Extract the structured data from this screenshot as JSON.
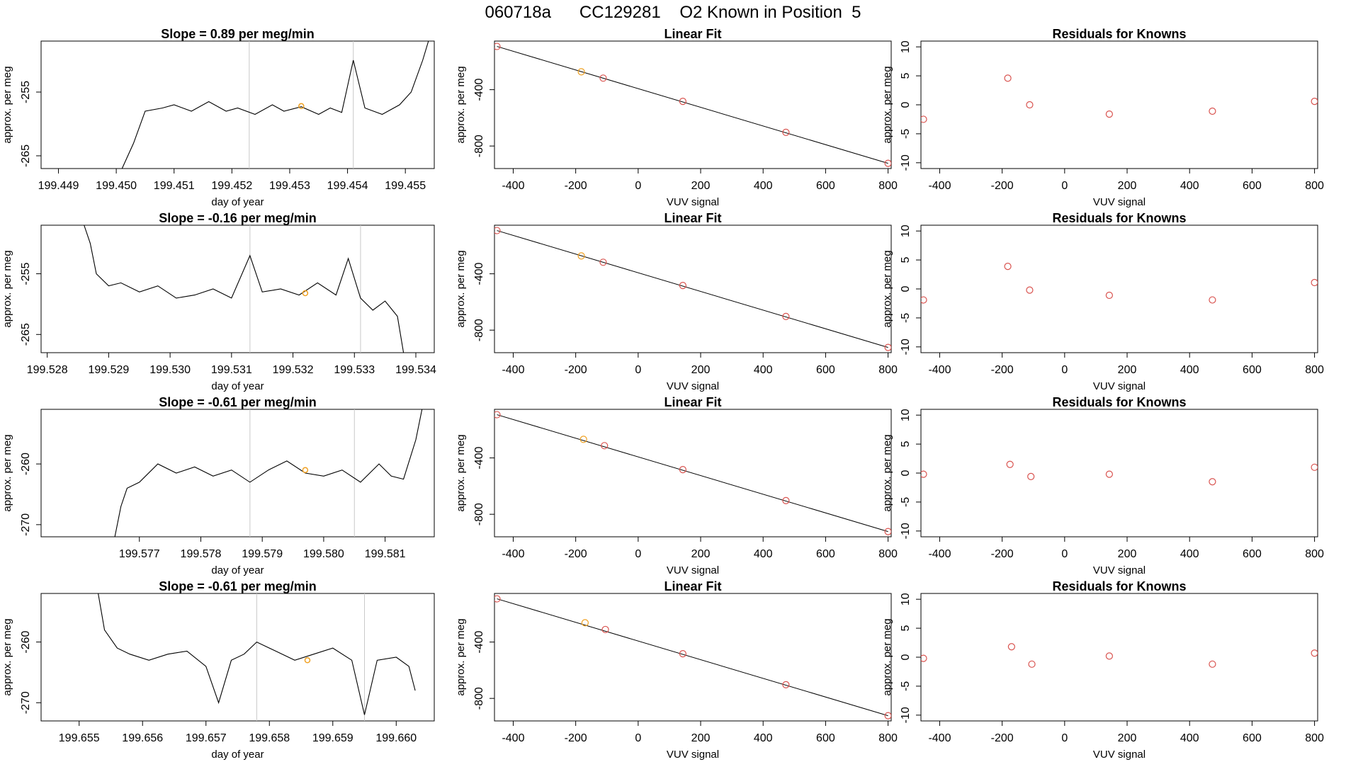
{
  "page": {
    "title": "060718a      CC129281    O2 Known in Position  5"
  },
  "colors": {
    "trace": "#000000",
    "fit_line": "#000000",
    "fit_points": "#d9534f",
    "highlight": "#f0a020",
    "residual_points": "#d9534f",
    "marker_lines": "#c8c8c8"
  },
  "chart_data": [
    {
      "type": "line",
      "title": "Slope =  0.89  per meg/min",
      "xlabel": "day of year",
      "ylabel": "approx. per meg",
      "xlim": [
        199.4487,
        199.4555
      ],
      "ylim": [
        -267,
        -247
      ],
      "xticks": [
        "199.449",
        "199.450",
        "199.451",
        "199.452",
        "199.453",
        "199.454",
        "199.455"
      ],
      "yticks": [
        "-255",
        "-265"
      ],
      "markers": [
        199.4523,
        199.4541
      ],
      "highlight": {
        "x": 199.4532,
        "y": -257.2
      },
      "series": [
        {
          "x": [
            199.4501,
            199.4503,
            199.4505,
            199.4508,
            199.451,
            199.4513,
            199.4516,
            199.4519,
            199.4521,
            199.4524,
            199.4527,
            199.4529,
            199.4532,
            199.4535,
            199.4537,
            199.4539,
            199.4541,
            199.4543,
            199.4546,
            199.4549,
            199.4551,
            199.4553,
            199.4554
          ],
          "y": [
            -267,
            -263,
            -258,
            -257.5,
            -257,
            -258,
            -256.5,
            -258,
            -257.5,
            -258.5,
            -257,
            -258,
            -257.3,
            -258.5,
            -257.5,
            -258.2,
            -250,
            -257.5,
            -258.5,
            -257,
            -255,
            -250,
            -247
          ]
        }
      ]
    },
    {
      "type": "scatter",
      "title": "Linear Fit",
      "xlabel": "VUV signal",
      "ylabel": "approx. per meg",
      "xlim": [
        -460,
        810
      ],
      "ylim": [
        -960,
        -55
      ],
      "xticks": [
        "-400",
        "-200",
        "0",
        "200",
        "400",
        "600",
        "800"
      ],
      "yticks": [
        "-400",
        "-800"
      ],
      "x": [
        -452,
        -182,
        -112,
        143,
        473,
        800
      ],
      "y": [
        -93,
        -273,
        -318,
        -483,
        -703,
        -923
      ],
      "highlight_index": 1,
      "fit": {
        "x": [
          -452,
          800
        ],
        "y": [
          -93,
          -923
        ]
      }
    },
    {
      "type": "scatter",
      "title": "Residuals for Knowns",
      "xlabel": "VUV signal",
      "ylabel": "approx. per meg",
      "xlim": [
        -460,
        810
      ],
      "ylim": [
        -11,
        11
      ],
      "xticks": [
        "-400",
        "-200",
        "0",
        "200",
        "400",
        "600",
        "800"
      ],
      "yticks": [
        "10",
        "5",
        "0",
        "-5",
        "-10"
      ],
      "x": [
        -452,
        -182,
        -112,
        143,
        473,
        800
      ],
      "y": [
        -2.5,
        4.6,
        0,
        -1.6,
        -1.1,
        0.6
      ]
    },
    {
      "type": "line",
      "title": "Slope =  -0.16  per meg/min",
      "xlabel": "day of year",
      "ylabel": "approx. per meg",
      "xlim": [
        199.5279,
        199.5343
      ],
      "ylim": [
        -268,
        -247
      ],
      "xticks": [
        "199.528",
        "199.529",
        "199.530",
        "199.531",
        "199.532",
        "199.533",
        "199.534"
      ],
      "yticks": [
        "-255",
        "-265"
      ],
      "markers": [
        199.5313,
        199.5331
      ],
      "highlight": {
        "x": 199.5322,
        "y": -258.2
      },
      "series": [
        {
          "x": [
            199.5286,
            199.5287,
            199.5288,
            199.529,
            199.5292,
            199.5295,
            199.5298,
            199.5301,
            199.5304,
            199.5307,
            199.531,
            199.5313,
            199.5315,
            199.5318,
            199.5321,
            199.5324,
            199.5327,
            199.5329,
            199.5331,
            199.5333,
            199.5335,
            199.5337,
            199.5338
          ],
          "y": [
            -247,
            -250,
            -255,
            -257,
            -256.5,
            -258,
            -257,
            -259,
            -258.5,
            -257.5,
            -259,
            -252,
            -258,
            -257.5,
            -258.5,
            -256.5,
            -258.5,
            -252.5,
            -259,
            -261,
            -259.5,
            -262,
            -268
          ]
        }
      ]
    },
    {
      "type": "scatter",
      "title": "Linear Fit",
      "xlabel": "VUV signal",
      "ylabel": "approx. per meg",
      "xlim": [
        -460,
        810
      ],
      "ylim": [
        -960,
        -55
      ],
      "xticks": [
        "-400",
        "-200",
        "0",
        "200",
        "400",
        "600",
        "800"
      ],
      "yticks": [
        "-400",
        "-800"
      ],
      "x": [
        -452,
        -182,
        -112,
        143,
        473,
        800
      ],
      "y": [
        -93,
        -273,
        -318,
        -483,
        -703,
        -923
      ],
      "highlight_index": 1,
      "fit": {
        "x": [
          -452,
          800
        ],
        "y": [
          -93,
          -923
        ]
      }
    },
    {
      "type": "scatter",
      "title": "Residuals for Knowns",
      "xlabel": "VUV signal",
      "ylabel": "approx. per meg",
      "xlim": [
        -460,
        810
      ],
      "ylim": [
        -11,
        11
      ],
      "xticks": [
        "-400",
        "-200",
        "0",
        "200",
        "400",
        "600",
        "800"
      ],
      "yticks": [
        "10",
        "5",
        "0",
        "-5",
        "-10"
      ],
      "x": [
        -452,
        -182,
        -112,
        143,
        473,
        800
      ],
      "y": [
        -1.9,
        3.9,
        -0.2,
        -1.1,
        -1.9,
        1.1
      ]
    },
    {
      "type": "line",
      "title": "Slope =  -0.61  per meg/min",
      "xlabel": "day of year",
      "ylabel": "approx. per meg",
      "xlim": [
        199.5754,
        199.5818
      ],
      "ylim": [
        -272,
        -251
      ],
      "xticks": [
        "199.577",
        "199.578",
        "199.579",
        "199.580",
        "199.581"
      ],
      "yticks": [
        "-260",
        "-270"
      ],
      "markers": [
        199.5788,
        199.5805
      ],
      "highlight": {
        "x": 199.5797,
        "y": -261
      },
      "series": [
        {
          "x": [
            199.5766,
            199.5767,
            199.5768,
            199.577,
            199.5773,
            199.5776,
            199.5779,
            199.5782,
            199.5785,
            199.5788,
            199.5791,
            199.5794,
            199.5797,
            199.58,
            199.5803,
            199.5806,
            199.5809,
            199.5811,
            199.5813,
            199.5815,
            199.5816
          ],
          "y": [
            -272,
            -267,
            -264,
            -263,
            -260,
            -261.5,
            -260.5,
            -262,
            -261,
            -263,
            -261,
            -259.5,
            -261.5,
            -262,
            -261,
            -263,
            -260,
            -262,
            -262.5,
            -256,
            -251
          ]
        }
      ]
    },
    {
      "type": "scatter",
      "title": "Linear Fit",
      "xlabel": "VUV signal",
      "ylabel": "approx. per meg",
      "xlim": [
        -460,
        810
      ],
      "ylim": [
        -960,
        -55
      ],
      "xticks": [
        "-400",
        "-200",
        "0",
        "200",
        "400",
        "600",
        "800"
      ],
      "yticks": [
        "-400",
        "-800"
      ],
      "x": [
        -452,
        -175,
        -108,
        143,
        473,
        800
      ],
      "y": [
        -93,
        -268,
        -313,
        -483,
        -703,
        -923
      ],
      "highlight_index": 1,
      "fit": {
        "x": [
          -452,
          800
        ],
        "y": [
          -93,
          -923
        ]
      }
    },
    {
      "type": "scatter",
      "title": "Residuals for Knowns",
      "xlabel": "VUV signal",
      "ylabel": "approx. per meg",
      "xlim": [
        -460,
        810
      ],
      "ylim": [
        -11,
        11
      ],
      "xticks": [
        "-400",
        "-200",
        "0",
        "200",
        "400",
        "600",
        "800"
      ],
      "yticks": [
        "10",
        "5",
        "0",
        "-5",
        "-10"
      ],
      "x": [
        -452,
        -175,
        -108,
        143,
        473,
        800
      ],
      "y": [
        -0.2,
        1.5,
        -0.6,
        -0.2,
        -1.5,
        1.0
      ]
    },
    {
      "type": "line",
      "title": "Slope =  -0.61  per meg/min",
      "xlabel": "day of year",
      "ylabel": "approx. per meg",
      "xlim": [
        199.6544,
        199.6606
      ],
      "ylim": [
        -273,
        -252
      ],
      "xticks": [
        "199.655",
        "199.656",
        "199.657",
        "199.658",
        "199.659",
        "199.660"
      ],
      "yticks": [
        "-260",
        "-270"
      ],
      "markers": [
        199.6578,
        199.6595
      ],
      "highlight": {
        "x": 199.6586,
        "y": -263
      },
      "series": [
        {
          "x": [
            199.6553,
            199.6554,
            199.6556,
            199.6558,
            199.6561,
            199.6564,
            199.6567,
            199.657,
            199.6572,
            199.6574,
            199.6576,
            199.6578,
            199.6581,
            199.6584,
            199.6587,
            199.659,
            199.6593,
            199.6595,
            199.6597,
            199.66,
            199.6602,
            199.6603
          ],
          "y": [
            -252,
            -258,
            -261,
            -262,
            -263,
            -262,
            -261.5,
            -264,
            -270,
            -263,
            -262,
            -260,
            -261.5,
            -263,
            -262,
            -261,
            -263,
            -272,
            -263,
            -262.5,
            -264,
            -268
          ]
        }
      ]
    },
    {
      "type": "scatter",
      "title": "Linear Fit",
      "xlabel": "VUV signal",
      "ylabel": "approx. per meg",
      "xlim": [
        -460,
        810
      ],
      "ylim": [
        -960,
        -55
      ],
      "xticks": [
        "-400",
        "-200",
        "0",
        "200",
        "400",
        "600",
        "800"
      ],
      "yticks": [
        "-400",
        "-800"
      ],
      "x": [
        -452,
        -170,
        -105,
        143,
        473,
        800
      ],
      "y": [
        -93,
        -263,
        -311,
        -483,
        -703,
        -923
      ],
      "highlight_index": 1,
      "fit": {
        "x": [
          -452,
          800
        ],
        "y": [
          -93,
          -923
        ]
      }
    },
    {
      "type": "scatter",
      "title": "Residuals for Knowns",
      "xlabel": "VUV signal",
      "ylabel": "approx. per meg",
      "xlim": [
        -460,
        810
      ],
      "ylim": [
        -11,
        11
      ],
      "xticks": [
        "-400",
        "-200",
        "0",
        "200",
        "400",
        "600",
        "800"
      ],
      "yticks": [
        "10",
        "5",
        "0",
        "-5",
        "-10"
      ],
      "x": [
        -452,
        -170,
        -105,
        143,
        473,
        800
      ],
      "y": [
        -0.2,
        1.8,
        -1.2,
        0.2,
        -1.2,
        0.7
      ]
    }
  ]
}
